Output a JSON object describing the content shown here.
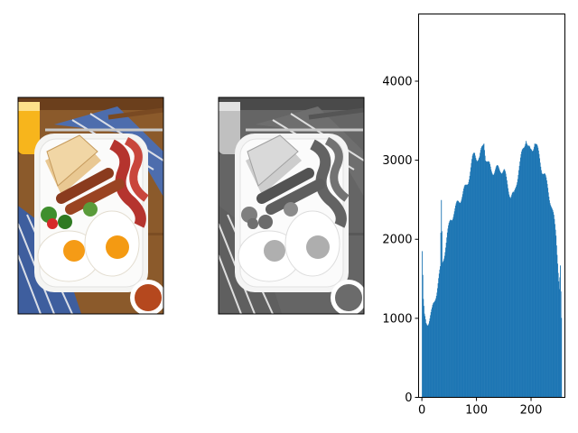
{
  "figure": {
    "panels": [
      {
        "type": "image",
        "content": "full-english-breakfast-photo",
        "mode": "color"
      },
      {
        "type": "image",
        "content": "full-english-breakfast-photo",
        "mode": "grayscale"
      }
    ]
  },
  "chart_data": {
    "type": "bar",
    "title": "",
    "xlabel": "",
    "ylabel": "",
    "xlim": [
      -6,
      262
    ],
    "ylim": [
      0,
      4850
    ],
    "grid": false,
    "bar_color": "#1f77b4",
    "xticks": [
      0,
      100,
      200
    ],
    "yticks": [
      0,
      1000,
      2000,
      3000,
      4000
    ],
    "xtick_labels": [
      "0",
      "100",
      "200"
    ],
    "ytick_labels": [
      "0",
      "1000",
      "2000",
      "3000",
      "4000"
    ],
    "profile_points": [
      [
        0,
        1850
      ],
      [
        2,
        1200
      ],
      [
        4,
        1000
      ],
      [
        7,
        930
      ],
      [
        10,
        960
      ],
      [
        14,
        1020
      ],
      [
        18,
        1080
      ],
      [
        22,
        1200
      ],
      [
        27,
        1380
      ],
      [
        30,
        1500
      ],
      [
        33,
        1600
      ],
      [
        35,
        2450
      ],
      [
        37,
        1700
      ],
      [
        41,
        1850
      ],
      [
        46,
        2050
      ],
      [
        52,
        2250
      ],
      [
        58,
        2350
      ],
      [
        62,
        2400
      ],
      [
        67,
        2480
      ],
      [
        72,
        2550
      ],
      [
        76,
        2600
      ],
      [
        80,
        2650
      ],
      [
        84,
        2750
      ],
      [
        88,
        2880
      ],
      [
        92,
        3000
      ],
      [
        96,
        3080
      ],
      [
        100,
        3050
      ],
      [
        105,
        3020
      ],
      [
        110,
        3150
      ],
      [
        113,
        3250
      ],
      [
        116,
        3050
      ],
      [
        120,
        2950
      ],
      [
        126,
        2880
      ],
      [
        132,
        2870
      ],
      [
        138,
        2880
      ],
      [
        144,
        2900
      ],
      [
        150,
        2850
      ],
      [
        156,
        2700
      ],
      [
        162,
        2550
      ],
      [
        168,
        2540
      ],
      [
        172,
        2700
      ],
      [
        177,
        2900
      ],
      [
        182,
        3050
      ],
      [
        187,
        3200
      ],
      [
        190,
        3300
      ],
      [
        194,
        3150
      ],
      [
        198,
        3100
      ],
      [
        202,
        3150
      ],
      [
        206,
        3250
      ],
      [
        210,
        3150
      ],
      [
        214,
        3050
      ],
      [
        219,
        2900
      ],
      [
        224,
        2800
      ],
      [
        230,
        2650
      ],
      [
        236,
        2450
      ],
      [
        241,
        2250
      ],
      [
        245,
        2050
      ],
      [
        248,
        1750
      ],
      [
        251,
        1400
      ],
      [
        253,
        1650
      ],
      [
        255,
        950
      ]
    ]
  }
}
